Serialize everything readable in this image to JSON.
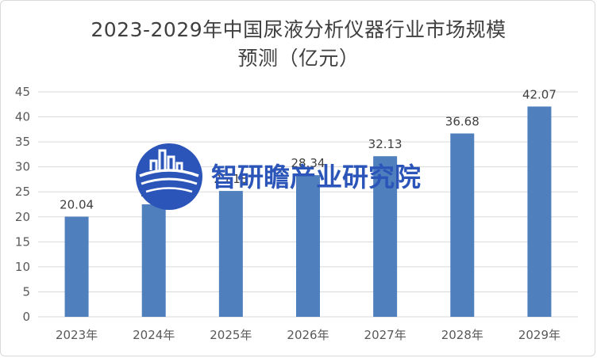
{
  "title_lines": [
    "2023-2029年中国尿液分析仪器行业市场规模",
    "预测（亿元）"
  ],
  "watermark": {
    "text": "智研瞻产业研究院",
    "color": "#2b55b8",
    "logo": "city-skyline-globe-icon"
  },
  "colors": {
    "bar": "#4f7fbd",
    "grid": "#d9d9d9",
    "axis_text": "#595959"
  },
  "chart_data": {
    "type": "bar",
    "title": "2023-2029年中国尿液分析仪器行业市场规模预测（亿元）",
    "categories": [
      "2023年",
      "2024年",
      "2025年",
      "2026年",
      "2027年",
      "2028年",
      "2029年"
    ],
    "values": [
      20.04,
      22.5,
      25.18,
      28.34,
      32.13,
      36.68,
      42.07
    ],
    "data_labels": [
      "20.04",
      "22.5",
      "25.18",
      "28.34",
      "32.13",
      "36.68",
      "42.07"
    ],
    "ylim": [
      0,
      45
    ],
    "yticks": [
      0,
      5,
      10,
      15,
      20,
      25,
      30,
      35,
      40,
      45
    ],
    "grid": true,
    "legend": "none",
    "xlabel": "",
    "ylabel": ""
  }
}
